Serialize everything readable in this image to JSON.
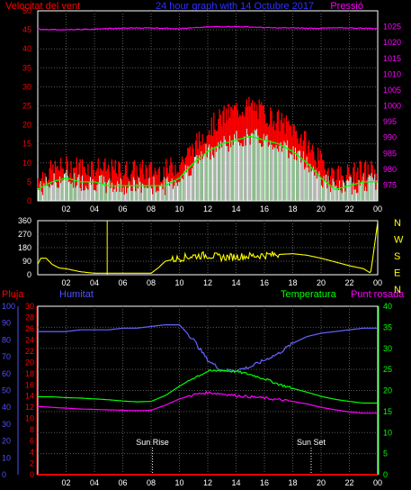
{
  "colors": {
    "background": "#000000",
    "frame": "#ffffff",
    "grid": "#5a5a5a",
    "wind_avg": "#ffffff",
    "wind_gust": "#ff0000",
    "wind_lo": "#c8ffc8",
    "wind_mid": "#00ff00",
    "pressure": "#ff00ff",
    "pressure_axis": "#ff00ff",
    "wind_axis": "#ff0000",
    "direction": "#ffff00",
    "humidity": "#6464ff",
    "humidity_axis": "#5050ff",
    "temperature": "#00ff00",
    "dewpoint": "#ff00ff",
    "rain": "#ff0000",
    "title": "#3030ff",
    "sun": "#ffffff"
  },
  "chart_data": [
    {
      "type": "line",
      "title": "24 hour graph with 14 Octubre 2017",
      "ylabel": "Velocitat del vent",
      "y2label": "Pressió",
      "x_ticks": [
        "02",
        "04",
        "06",
        "08",
        "10",
        "12",
        "14",
        "16",
        "18",
        "20",
        "22",
        "00"
      ],
      "ylim": [
        0,
        50
      ],
      "y_ticks": [
        0,
        5,
        10,
        15,
        20,
        25,
        30,
        35,
        40,
        45,
        50
      ],
      "y2lim": [
        970,
        1030
      ],
      "y2_ticks": [
        975,
        980,
        985,
        990,
        995,
        1000,
        1005,
        1010,
        1015,
        1020,
        1025
      ],
      "grid": true,
      "hours": [
        0,
        1,
        2,
        3,
        4,
        5,
        6,
        7,
        8,
        9,
        10,
        11,
        12,
        13,
        14,
        15,
        16,
        17,
        18,
        19,
        20,
        21,
        22,
        23,
        24
      ],
      "series": [
        {
          "key": "gust",
          "values": [
            6,
            8,
            9,
            9,
            9,
            8,
            8,
            8,
            8,
            8,
            10,
            14,
            19,
            22,
            24,
            25,
            23,
            21,
            19,
            15,
            10,
            7,
            7,
            8,
            8
          ]
        },
        {
          "key": "average",
          "values": [
            3,
            5,
            6,
            5,
            5,
            4,
            4,
            4,
            4,
            4,
            6,
            10,
            13,
            15,
            16,
            17,
            16,
            15,
            13,
            10,
            6,
            3,
            4,
            5,
            5
          ]
        },
        {
          "key": "pressure",
          "values": [
            1024.2,
            1024.1,
            1024.0,
            1024.1,
            1024.2,
            1024.4,
            1024.5,
            1024.6,
            1024.6,
            1024.5,
            1024.4,
            1024.6,
            1024.9,
            1025.0,
            1025.0,
            1024.9,
            1024.7,
            1024.6,
            1024.6,
            1024.5,
            1024.5,
            1024.6,
            1024.6,
            1024.5,
            1024.4
          ]
        }
      ]
    },
    {
      "type": "line",
      "x_ticks": [
        "02",
        "04",
        "06",
        "08",
        "10",
        "12",
        "14",
        "16",
        "18",
        "20",
        "22",
        "00"
      ],
      "ylim": [
        0,
        360
      ],
      "y_ticks": [
        0,
        90,
        180,
        270,
        360
      ],
      "right_labels": [
        "N",
        "W",
        "S",
        "E",
        "N"
      ],
      "grid": true,
      "hours": [
        0,
        0.2,
        0.6,
        1,
        1.5,
        2,
        3,
        4,
        5,
        6,
        7,
        8,
        8.5,
        9,
        10,
        11,
        12,
        13,
        14,
        15,
        16,
        17,
        18,
        19,
        20,
        21,
        22,
        23,
        23.5,
        24
      ],
      "values": [
        70,
        110,
        110,
        70,
        45,
        40,
        20,
        10,
        10,
        10,
        10,
        10,
        45,
        90,
        110,
        125,
        130,
        115,
        120,
        125,
        130,
        135,
        140,
        130,
        110,
        85,
        60,
        40,
        10,
        350
      ]
    },
    {
      "type": "line",
      "labels": {
        "rain": "Pluja",
        "humidity": "Humitat",
        "temperature": "Temperatura",
        "dewpoint": "Punt rosada"
      },
      "x_ticks": [
        "02",
        "04",
        "06",
        "08",
        "10",
        "12",
        "14",
        "16",
        "18",
        "20",
        "22",
        "00"
      ],
      "ylim_humidity": [
        0,
        100
      ],
      "y_ticks_humidity": [
        0,
        10,
        20,
        30,
        40,
        50,
        60,
        70,
        80,
        90,
        100
      ],
      "ylim_rain": [
        0,
        30
      ],
      "y_ticks_rain": [
        0,
        2,
        4,
        6,
        8,
        10,
        12,
        14,
        16,
        18,
        20,
        22,
        24,
        26,
        28,
        30
      ],
      "ylim_temp": [
        0,
        40
      ],
      "y_ticks_temp": [
        0,
        5,
        10,
        15,
        20,
        25,
        30,
        35,
        40
      ],
      "grid": true,
      "annotations": [
        "Sun Rise",
        "Sun Set"
      ],
      "sunrise_hour": 8.1,
      "sunset_hour": 19.3,
      "hours": [
        0,
        1,
        2,
        3,
        4,
        5,
        6,
        7,
        8,
        9,
        10,
        11,
        12,
        13,
        14,
        15,
        16,
        17,
        18,
        19,
        20,
        21,
        22,
        23,
        24
      ],
      "series": [
        {
          "key": "humidity",
          "values": [
            85,
            85,
            85,
            86,
            86,
            86,
            87,
            87,
            88,
            89,
            89,
            80,
            68,
            62,
            62,
            64,
            68,
            72,
            78,
            82,
            84,
            85,
            86,
            87,
            87
          ]
        },
        {
          "key": "temperature",
          "values": [
            18.5,
            18.5,
            18.3,
            18.2,
            18.0,
            17.8,
            17.5,
            17.3,
            17.4,
            18.8,
            21.0,
            23.0,
            24.5,
            24.8,
            24.5,
            23.8,
            22.8,
            21.5,
            20.5,
            19.6,
            18.6,
            17.9,
            17.4,
            17.0,
            17.0
          ]
        },
        {
          "key": "dewpoint",
          "values": [
            16.2,
            16.0,
            15.8,
            15.6,
            15.5,
            15.4,
            15.3,
            15.2,
            15.3,
            16.5,
            18.0,
            19.0,
            19.5,
            19.2,
            18.8,
            18.5,
            18.2,
            17.8,
            17.4,
            16.8,
            16.0,
            15.4,
            14.9,
            14.6,
            14.6
          ]
        },
        {
          "key": "rain",
          "values": [
            0,
            0,
            0,
            0,
            0,
            0,
            0,
            0,
            0,
            0,
            0,
            0,
            0,
            0,
            0,
            0,
            0,
            0,
            0,
            0,
            0,
            0,
            0,
            0,
            0
          ]
        }
      ]
    }
  ]
}
